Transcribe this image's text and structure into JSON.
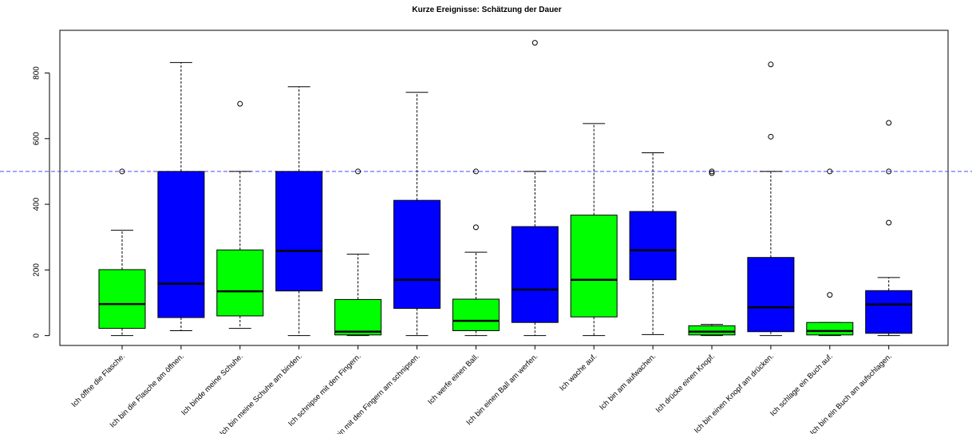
{
  "chart_data": {
    "type": "boxplot",
    "title": "Kurze Ereignisse: Schätzung der Dauer",
    "xlabel": "",
    "ylabel": "",
    "ylim": [
      -30,
      930
    ],
    "yticks": [
      0,
      200,
      400,
      600,
      800
    ],
    "reference_line": {
      "y": 500,
      "color": "#4a4aff",
      "style": "dashed"
    },
    "colors": {
      "green": "#00ff00",
      "blue": "#0000ff",
      "median": "#000000",
      "border": "#000000"
    },
    "boxes": [
      {
        "label": "Ich öffne die Flasche.",
        "color": "green",
        "min": 0,
        "q1": 22,
        "median": 96,
        "q3": 201,
        "max": 321,
        "outliers": [
          500
        ]
      },
      {
        "label": "Ich bin die Flasche am öffnen.",
        "color": "blue",
        "min": 15,
        "q1": 55,
        "median": 158,
        "q3": 500,
        "max": 832,
        "outliers": []
      },
      {
        "label": "Ich binde meine Schuhe.",
        "color": "green",
        "min": 22,
        "q1": 60,
        "median": 135,
        "q3": 261,
        "max": 500,
        "outliers": [
          706
        ]
      },
      {
        "label": "Ich bin meine Schuhe am binden.",
        "color": "blue",
        "min": 0,
        "q1": 136,
        "median": 258,
        "q3": 500,
        "max": 758,
        "outliers": []
      },
      {
        "label": "Ich schnipse mit den Fingern.",
        "color": "green",
        "min": 0,
        "q1": 2,
        "median": 12,
        "q3": 110,
        "max": 248,
        "outliers": [
          500
        ]
      },
      {
        "label": "Ich bin mit den Fingern am schnipsen.",
        "color": "blue",
        "min": 0,
        "q1": 83,
        "median": 170,
        "q3": 412,
        "max": 741,
        "outliers": []
      },
      {
        "label": "Ich werfe einen Ball.",
        "color": "green",
        "min": 0,
        "q1": 15,
        "median": 45,
        "q3": 111,
        "max": 254,
        "outliers": [
          330,
          500
        ]
      },
      {
        "label": "Ich bin einen Ball am werfen.",
        "color": "blue",
        "min": 0,
        "q1": 40,
        "median": 140,
        "q3": 332,
        "max": 500,
        "outliers": [
          892
        ]
      },
      {
        "label": "Ich wache auf.",
        "color": "green",
        "min": 0,
        "q1": 57,
        "median": 170,
        "q3": 367,
        "max": 646,
        "outliers": []
      },
      {
        "label": "Ich bin am aufwachen.",
        "color": "blue",
        "min": 3,
        "q1": 170,
        "median": 260,
        "q3": 378,
        "max": 557,
        "outliers": []
      },
      {
        "label": "Ich drücke einen Knopf.",
        "color": "green",
        "min": 0,
        "q1": 2,
        "median": 12,
        "q3": 30,
        "max": 34,
        "outliers": [
          495,
          500
        ]
      },
      {
        "label": "Ich bin einen Knopf am drücken.",
        "color": "blue",
        "min": 0,
        "q1": 12,
        "median": 86,
        "q3": 238,
        "max": 500,
        "outliers": [
          606,
          826
        ]
      },
      {
        "label": "Ich schlage ein Buch auf.",
        "color": "green",
        "min": 0,
        "q1": 2,
        "median": 14,
        "q3": 40,
        "max": 40,
        "outliers": [
          124,
          500
        ]
      },
      {
        "label": "Ich bin ein Buch am aufschlagen.",
        "color": "blue",
        "min": 0,
        "q1": 7,
        "median": 95,
        "q3": 137,
        "max": 177,
        "outliers": [
          344,
          500,
          648
        ]
      }
    ]
  }
}
